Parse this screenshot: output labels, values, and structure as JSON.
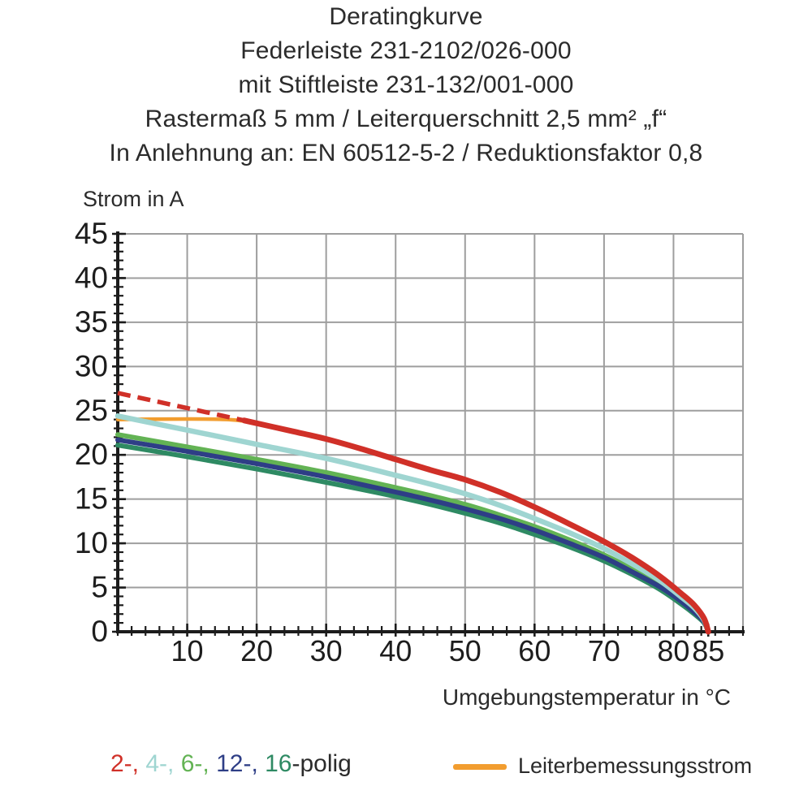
{
  "header": {
    "lines": [
      "Deratingkurve",
      "Federleiste 231-2102/026-000",
      "mit Stiftleiste 231-132/001-000",
      "Rastermaß 5 mm / Leiterquerschnitt 2,5 mm² „f“",
      "In Anlehnung an: EN 60512-5-2 / Reduktionsfaktor 0,8"
    ]
  },
  "chart_data": {
    "type": "line",
    "title": "Deratingkurve",
    "xlabel": "Umgebungstemperatur in °C",
    "ylabel": "Strom in A",
    "xlim": [
      0,
      90
    ],
    "ylim": [
      0,
      45
    ],
    "x_ticks": [
      10,
      20,
      30,
      40,
      50,
      60,
      70,
      80,
      85
    ],
    "y_ticks": [
      0,
      5,
      10,
      15,
      20,
      25,
      30,
      35,
      40,
      45
    ],
    "x_minor_step": 2,
    "y_minor_step": 1,
    "grid": true,
    "grid_color": "#9e9e9e",
    "axis_color": "#1c1c1c",
    "legend_position": "bottom",
    "series": [
      {
        "name": "Leiterbemessungsstrom",
        "color": "#f29d2f",
        "dash": false,
        "width": 4.5,
        "points": [
          [
            0,
            24
          ],
          [
            16,
            24
          ],
          [
            18.3,
            23.8
          ]
        ]
      },
      {
        "name": "16-polig",
        "color": "#2e8a63",
        "dash": false,
        "width": 6,
        "points": [
          [
            0,
            21.1
          ],
          [
            10,
            19.8
          ],
          [
            20,
            18.4
          ],
          [
            30,
            16.9
          ],
          [
            40,
            15.3
          ],
          [
            45,
            14.4
          ],
          [
            50,
            13.4
          ],
          [
            55,
            12.3
          ],
          [
            60,
            11.0
          ],
          [
            65,
            9.6
          ],
          [
            70,
            8.0
          ],
          [
            74,
            6.5
          ],
          [
            78,
            4.8
          ],
          [
            81,
            3.2
          ],
          [
            83,
            2.0
          ],
          [
            84.4,
            1.0
          ],
          [
            85,
            0
          ]
        ]
      },
      {
        "name": "6-polig",
        "color": "#63b354",
        "dash": false,
        "width": 6,
        "points": [
          [
            0,
            22.3
          ],
          [
            10,
            20.9
          ],
          [
            20,
            19.5
          ],
          [
            30,
            18.0
          ],
          [
            40,
            16.3
          ],
          [
            45,
            15.4
          ],
          [
            50,
            14.4
          ],
          [
            55,
            13.2
          ],
          [
            60,
            11.9
          ],
          [
            65,
            10.4
          ],
          [
            70,
            8.7
          ],
          [
            74,
            7.1
          ],
          [
            78,
            5.3
          ],
          [
            81,
            3.7
          ],
          [
            83,
            2.4
          ],
          [
            84.4,
            1.2
          ],
          [
            85,
            0
          ]
        ]
      },
      {
        "name": "12-polig",
        "color": "#2e3e86",
        "dash": false,
        "width": 6,
        "points": [
          [
            0,
            21.7
          ],
          [
            10,
            20.4
          ],
          [
            20,
            19.0
          ],
          [
            30,
            17.5
          ],
          [
            40,
            15.8
          ],
          [
            45,
            14.9
          ],
          [
            50,
            13.9
          ],
          [
            55,
            12.8
          ],
          [
            60,
            11.5
          ],
          [
            65,
            10.0
          ],
          [
            70,
            8.4
          ],
          [
            74,
            6.8
          ],
          [
            78,
            5.1
          ],
          [
            81,
            3.5
          ],
          [
            83,
            2.2
          ],
          [
            84.4,
            1.1
          ],
          [
            85,
            0
          ]
        ]
      },
      {
        "name": "4-polig",
        "color": "#9fd5d1",
        "dash": false,
        "width": 6.5,
        "points": [
          [
            0,
            24.4
          ],
          [
            10,
            22.8
          ],
          [
            20,
            21.2
          ],
          [
            30,
            19.6
          ],
          [
            40,
            17.7
          ],
          [
            45,
            16.7
          ],
          [
            50,
            15.6
          ],
          [
            55,
            14.3
          ],
          [
            60,
            12.8
          ],
          [
            65,
            11.2
          ],
          [
            70,
            9.4
          ],
          [
            74,
            7.7
          ],
          [
            78,
            5.8
          ],
          [
            81,
            4.0
          ],
          [
            83,
            2.7
          ],
          [
            84.4,
            1.3
          ],
          [
            85,
            0
          ]
        ]
      },
      {
        "name": "2-polig (gestrichelt)",
        "color": "#d03028",
        "dash": true,
        "width": 5.5,
        "points": [
          [
            0,
            27
          ],
          [
            18.2,
            23.9
          ]
        ]
      },
      {
        "name": "2-polig",
        "color": "#d03028",
        "dash": false,
        "width": 7,
        "points": [
          [
            18.2,
            23.9
          ],
          [
            25,
            22.7
          ],
          [
            30,
            21.8
          ],
          [
            35,
            20.7
          ],
          [
            40,
            19.5
          ],
          [
            45,
            18.3
          ],
          [
            50,
            17.2
          ],
          [
            55,
            15.8
          ],
          [
            60,
            14.1
          ],
          [
            65,
            12.2
          ],
          [
            70,
            10.2
          ],
          [
            74,
            8.4
          ],
          [
            78,
            6.3
          ],
          [
            81,
            4.4
          ],
          [
            83,
            3.0
          ],
          [
            84.4,
            1.5
          ],
          [
            85,
            0
          ]
        ]
      }
    ]
  },
  "legend": {
    "poles": {
      "tokens": [
        {
          "text": "2-,",
          "color": "#d03028"
        },
        {
          "text": "4-,",
          "color": "#9fd5d1"
        },
        {
          "text": "6-,",
          "color": "#63b354"
        },
        {
          "text": "12-,",
          "color": "#2e3e86"
        },
        {
          "text": "16",
          "color": "#2e8a63"
        },
        {
          "text": "-polig",
          "color": "#2b2b2b"
        }
      ]
    },
    "rated_current": {
      "label": "Leiterbemessungsstrom",
      "swatch_color": "#f29d2f"
    }
  }
}
